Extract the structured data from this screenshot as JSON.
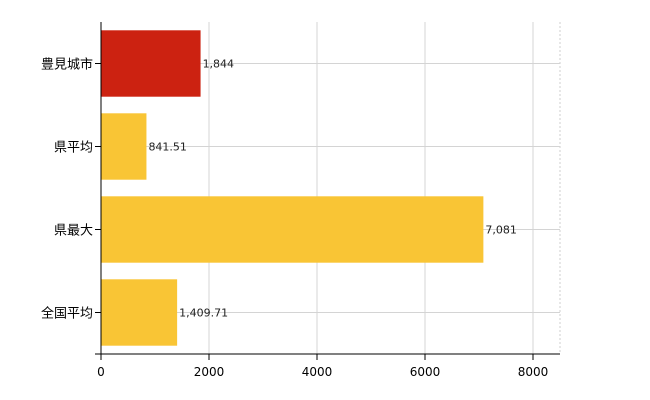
{
  "chart_data": {
    "type": "bar",
    "orientation": "horizontal",
    "categories": [
      "豊見城市",
      "県平均",
      "県最大",
      "全国平均"
    ],
    "values": [
      1844,
      841.51,
      7081,
      1409.71
    ],
    "value_labels": [
      "1,844",
      "841.51",
      "7,081",
      "1,409.71"
    ],
    "bar_colors": [
      "#cc2211",
      "#f9c535",
      "#f9c535",
      "#f9c535"
    ],
    "xlim": [
      0,
      8500
    ],
    "xticks": [
      0,
      2000,
      4000,
      6000,
      8000
    ],
    "xtick_labels": [
      "0",
      "2000",
      "4000",
      "6000",
      "8000"
    ],
    "grid": true,
    "legend": false
  }
}
